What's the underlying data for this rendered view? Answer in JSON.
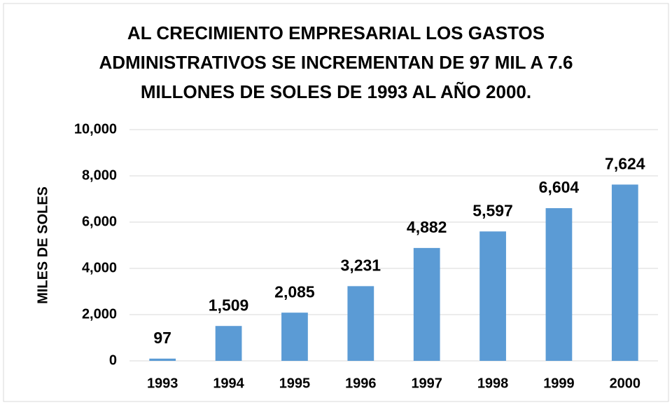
{
  "chart_data": {
    "type": "bar",
    "title": "AL CRECIMIENTO EMPRESARIAL LOS GASTOS ADMINISTRATIVOS SE INCREMENTAN DE 97 MIL A 7.6 MILLONES DE SOLES DE 1993 AL AÑO 2000.",
    "y_label": "MILES DE SOLES",
    "categories": [
      "1993",
      "1994",
      "1995",
      "1996",
      "1997",
      "1998",
      "1999",
      "2000"
    ],
    "values": [
      97,
      1509,
      2085,
      3231,
      4882,
      5597,
      6604,
      7624
    ],
    "value_labels": [
      "97",
      "1,509",
      "2,085",
      "3,231",
      "4,882",
      "5,597",
      "6,604",
      "7,624"
    ],
    "color": "#5b9bd5",
    "ylim": [
      0,
      10000
    ],
    "yticks": [
      0,
      {
        "value": 2000,
        "label": "2,000"
      },
      {
        "value": 4000,
        "label": "4,000"
      },
      {
        "value": 6000,
        "label": "6,000"
      },
      {
        "value": 8000,
        "label": "8,000"
      },
      {
        "value": 10000,
        "label": "10,000"
      }
    ],
    "grid": true
  }
}
